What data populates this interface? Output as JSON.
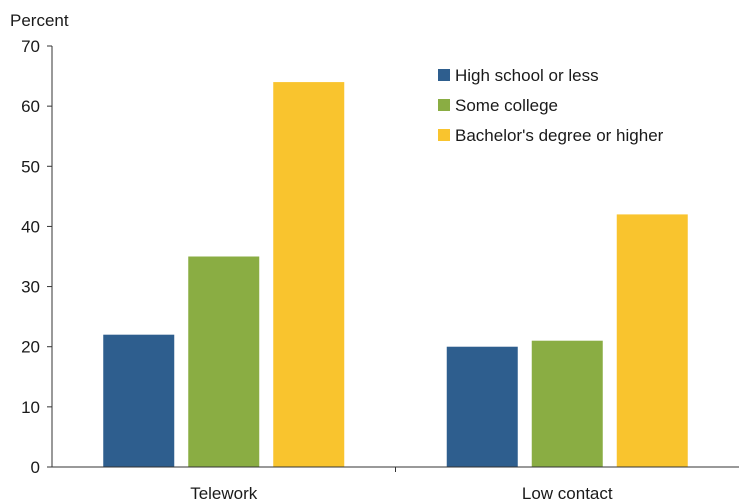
{
  "chart_data": {
    "type": "bar",
    "ylabel": "Percent",
    "ylim": [
      0,
      70
    ],
    "yticks": [
      0,
      10,
      20,
      30,
      40,
      50,
      60,
      70
    ],
    "grid": false,
    "legend_position": "top-right",
    "categories": [
      "Telework",
      "Low contact"
    ],
    "series": [
      {
        "name": "High school or less",
        "color": "#2e5e8e",
        "values": [
          22,
          20
        ]
      },
      {
        "name": "Some college",
        "color": "#8aad43",
        "values": [
          35,
          21
        ]
      },
      {
        "name": "Bachelor's degree or higher",
        "color": "#f9c42e",
        "values": [
          64,
          42
        ]
      }
    ]
  }
}
